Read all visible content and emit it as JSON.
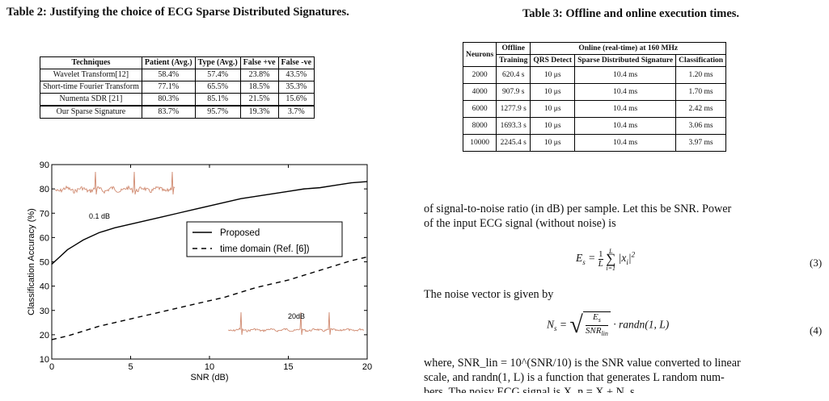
{
  "table2": {
    "caption": "Table 2: Justifying the choice of ECG Sparse Distributed Signatures.",
    "headers": [
      "Techniques",
      "Patient (Avg.)",
      "Type (Avg.)",
      "False +ve",
      "False -ve"
    ],
    "rows": [
      [
        "Wavelet Transform[12]",
        "58.4%",
        "57.4%",
        "23.8%",
        "43.5%"
      ],
      [
        "Short-time Fourier Transform",
        "77.1%",
        "65.5%",
        "18.5%",
        "35.3%"
      ],
      [
        "Numenta SDR [21]",
        "80.3%",
        "85.1%",
        "21.5%",
        "15.6%"
      ],
      [
        "Our Sparse Signature",
        "83.7%",
        "95.7%",
        "19.3%",
        "3.7%"
      ]
    ]
  },
  "table3": {
    "caption": "Table 3: Offline and online execution times.",
    "head_neurons": "Neurons",
    "head_offline": "Offline",
    "head_online": "Online (real-time) at 160 MHz",
    "sub_headers": [
      "Training",
      "QRS Detect",
      "Sparse Distributed Signature",
      "Classification"
    ],
    "rows": [
      [
        "2000",
        "620.4 s",
        "10 μs",
        "10.4 ms",
        "1.20 ms"
      ],
      [
        "4000",
        "907.9 s",
        "10 μs",
        "10.4 ms",
        "1.70 ms"
      ],
      [
        "6000",
        "1277.9 s",
        "10 μs",
        "10.4 ms",
        "2.42 ms"
      ],
      [
        "8000",
        "1693.3 s",
        "10 μs",
        "10.4 ms",
        "3.06 ms"
      ],
      [
        "10000",
        "2245.4 s",
        "10 μs",
        "10.4 ms",
        "3.97 ms"
      ]
    ]
  },
  "chart_data": {
    "type": "line",
    "xlabel": "SNR (dB)",
    "ylabel": "Classification Accuracy (%)",
    "xlim": [
      0,
      20
    ],
    "ylim": [
      10,
      90
    ],
    "xticks": [
      "0",
      "5",
      "10",
      "15",
      "20"
    ],
    "yticks": [
      "10",
      "20",
      "30",
      "40",
      "50",
      "60",
      "70",
      "80",
      "90"
    ],
    "legend": "middle-right",
    "series": [
      {
        "name": "Proposed",
        "style": "solid",
        "x": [
          0,
          0.5,
          1,
          1.5,
          2,
          3,
          4,
          5,
          6,
          7,
          8,
          9,
          10,
          11,
          12,
          13,
          14,
          15,
          16,
          17,
          18,
          19,
          20
        ],
        "y": [
          49,
          52,
          55,
          57,
          59,
          62,
          64,
          65.5,
          67,
          68.5,
          70,
          71.5,
          73,
          74.5,
          76,
          77,
          78,
          79,
          80,
          80.5,
          81.5,
          82.5,
          83
        ]
      },
      {
        "name": "time domain (Ref. [6])",
        "style": "dashed",
        "x": [
          0,
          1,
          2,
          3,
          4,
          5,
          6,
          7,
          8,
          9,
          10,
          11,
          12,
          13,
          14,
          15,
          16,
          17,
          18,
          19,
          20
        ],
        "y": [
          18,
          19.5,
          21.5,
          23.5,
          25,
          26.5,
          28,
          29.5,
          31,
          32.5,
          34,
          35.5,
          37.5,
          39.5,
          41,
          42.5,
          44.5,
          46.5,
          48.5,
          50.5,
          52
        ]
      }
    ],
    "annotations": [
      "0.1 dB",
      "20dB"
    ]
  },
  "text": {
    "p1_line1": "of signal-to-noise ratio (in dB) per sample. Let this be SNR. Power",
    "p1_line2": "of the input ECG signal (without noise) is",
    "eq3_num": "(3)",
    "p2": "The noise vector is given by",
    "eq4_num": "(4)",
    "p3_line1": "where, SNR_lin = 10^(SNR/10) is the SNR value converted to linear",
    "p3_line2": "scale, and randn(1, L) is a function that generates L random num-",
    "p3_line3": "bers. The noisy ECG signal is X_n = X + N_s."
  }
}
